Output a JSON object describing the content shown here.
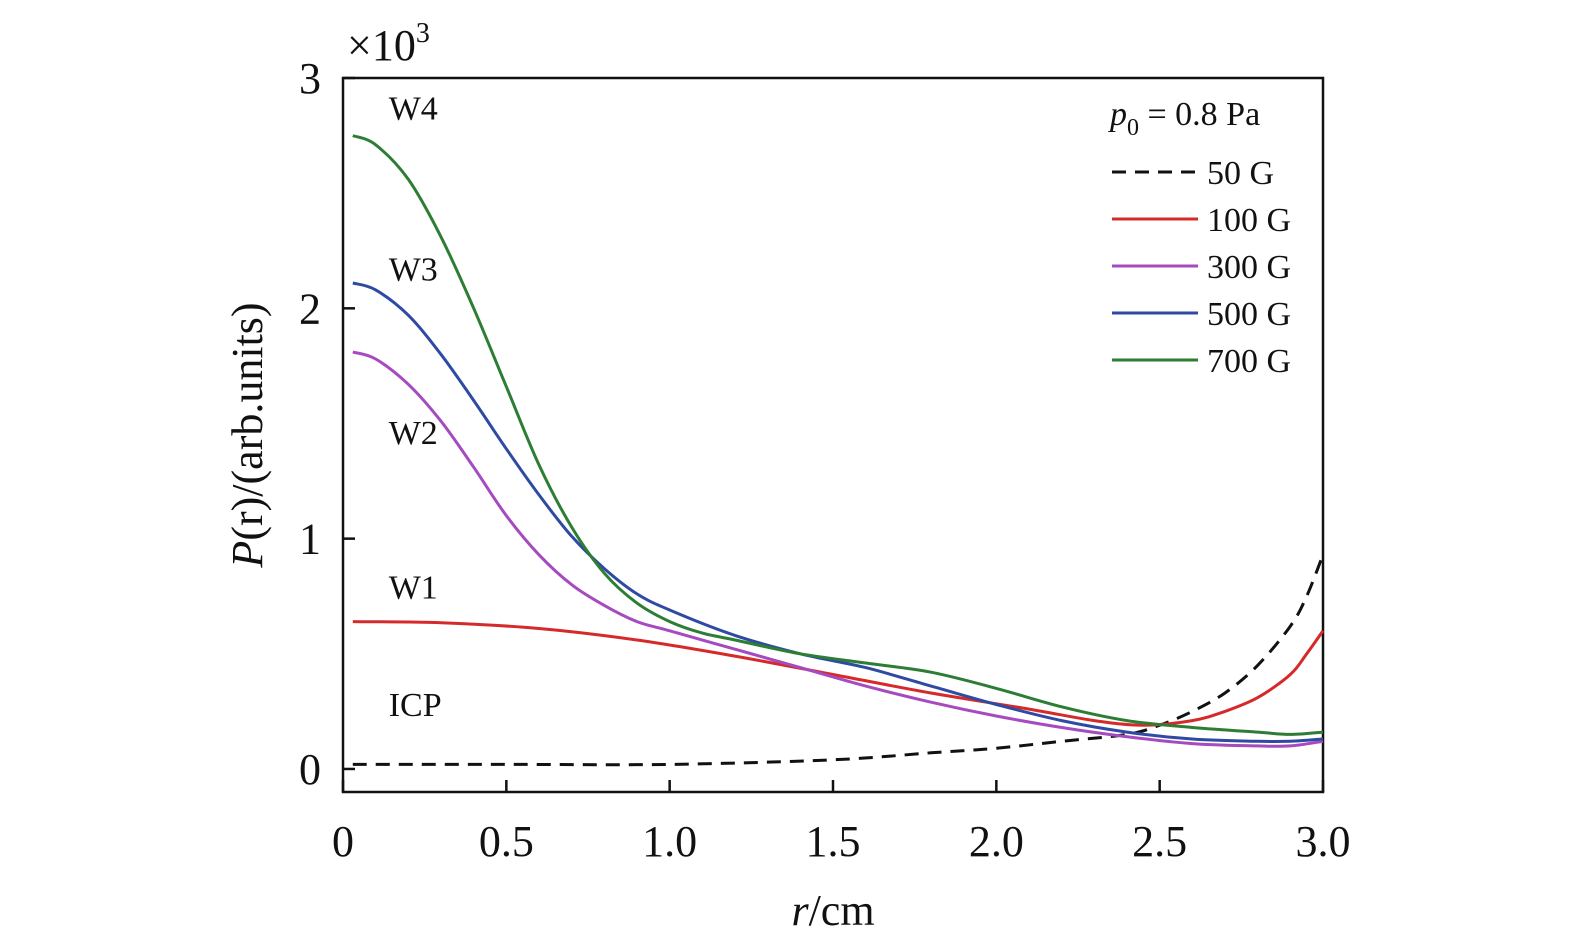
{
  "chart_data": {
    "type": "line",
    "xlabel_var": "r",
    "xlabel_unit": "/cm",
    "ylabel_var": "P",
    "ylabel_rest": "(r)/(arb.units)",
    "y_multiplier_base": "×10",
    "y_multiplier_exp": "3",
    "xlim": [
      0,
      3.0
    ],
    "ylim": [
      -0.1,
      3.0
    ],
    "x_ticks": [
      0,
      0.5,
      1.0,
      1.5,
      2.0,
      2.5,
      3.0
    ],
    "x_tick_labels": [
      "0",
      "0.5",
      "1.0",
      "1.5",
      "2.0",
      "2.5",
      "3.0"
    ],
    "y_ticks": [
      0,
      1,
      2,
      3
    ],
    "y_tick_labels": [
      "0",
      "1",
      "2",
      "3"
    ],
    "grid": false,
    "legend_placement": "top-right",
    "legend_title_var": "p",
    "legend_title_sub": "0",
    "legend_title_rest": " = 0.8 Pa",
    "annotations": [
      {
        "text": "W4",
        "x": 0.14,
        "y": 2.82
      },
      {
        "text": "W3",
        "x": 0.14,
        "y": 2.12
      },
      {
        "text": "W2",
        "x": 0.14,
        "y": 1.41
      },
      {
        "text": "W1",
        "x": 0.14,
        "y": 0.74
      },
      {
        "text": "ICP",
        "x": 0.14,
        "y": 0.23
      }
    ],
    "series": [
      {
        "name": "50 G",
        "color": "#111111",
        "dash": true,
        "x": [
          0.03,
          0.5,
          1.0,
          1.5,
          1.8,
          2.0,
          2.2,
          2.4,
          2.5,
          2.6,
          2.7,
          2.8,
          2.9,
          2.95,
          3.0
        ],
        "y": [
          0.02,
          0.02,
          0.02,
          0.04,
          0.07,
          0.09,
          0.12,
          0.15,
          0.19,
          0.25,
          0.33,
          0.45,
          0.62,
          0.75,
          0.93
        ]
      },
      {
        "name": "100 G",
        "color": "#d62a2a",
        "dash": false,
        "x": [
          0.03,
          0.3,
          0.6,
          0.9,
          1.2,
          1.5,
          1.8,
          2.1,
          2.3,
          2.45,
          2.6,
          2.7,
          2.8,
          2.9,
          2.95,
          3.0
        ],
        "y": [
          0.64,
          0.635,
          0.61,
          0.56,
          0.49,
          0.41,
          0.33,
          0.26,
          0.21,
          0.19,
          0.21,
          0.25,
          0.31,
          0.41,
          0.5,
          0.6
        ]
      },
      {
        "name": "300 G",
        "color": "#a64ac0",
        "dash": false,
        "x": [
          0.03,
          0.1,
          0.2,
          0.3,
          0.4,
          0.5,
          0.6,
          0.7,
          0.8,
          0.9,
          1.0,
          1.2,
          1.4,
          1.6,
          1.8,
          2.0,
          2.2,
          2.4,
          2.6,
          2.8,
          2.9,
          3.0
        ],
        "y": [
          1.81,
          1.78,
          1.67,
          1.51,
          1.31,
          1.1,
          0.93,
          0.8,
          0.71,
          0.64,
          0.6,
          0.52,
          0.44,
          0.36,
          0.29,
          0.23,
          0.18,
          0.14,
          0.11,
          0.1,
          0.1,
          0.12
        ]
      },
      {
        "name": "500 G",
        "color": "#2f4aa3",
        "dash": false,
        "x": [
          0.03,
          0.1,
          0.2,
          0.3,
          0.4,
          0.5,
          0.6,
          0.7,
          0.8,
          0.9,
          1.0,
          1.2,
          1.4,
          1.6,
          1.8,
          2.0,
          2.2,
          2.4,
          2.6,
          2.8,
          2.9,
          3.0
        ],
        "y": [
          2.11,
          2.08,
          1.97,
          1.8,
          1.6,
          1.39,
          1.19,
          1.01,
          0.87,
          0.76,
          0.69,
          0.58,
          0.5,
          0.44,
          0.36,
          0.28,
          0.21,
          0.16,
          0.13,
          0.12,
          0.12,
          0.13
        ]
      },
      {
        "name": "700 G",
        "color": "#2d7d34",
        "dash": false,
        "x": [
          0.03,
          0.1,
          0.2,
          0.3,
          0.4,
          0.5,
          0.6,
          0.7,
          0.8,
          0.9,
          1.0,
          1.1,
          1.2,
          1.4,
          1.6,
          1.8,
          2.0,
          2.2,
          2.4,
          2.6,
          2.8,
          2.9,
          3.0
        ],
        "y": [
          2.75,
          2.71,
          2.56,
          2.31,
          2.0,
          1.66,
          1.32,
          1.05,
          0.85,
          0.72,
          0.64,
          0.59,
          0.56,
          0.5,
          0.46,
          0.42,
          0.35,
          0.27,
          0.21,
          0.18,
          0.16,
          0.15,
          0.16
        ]
      }
    ]
  }
}
